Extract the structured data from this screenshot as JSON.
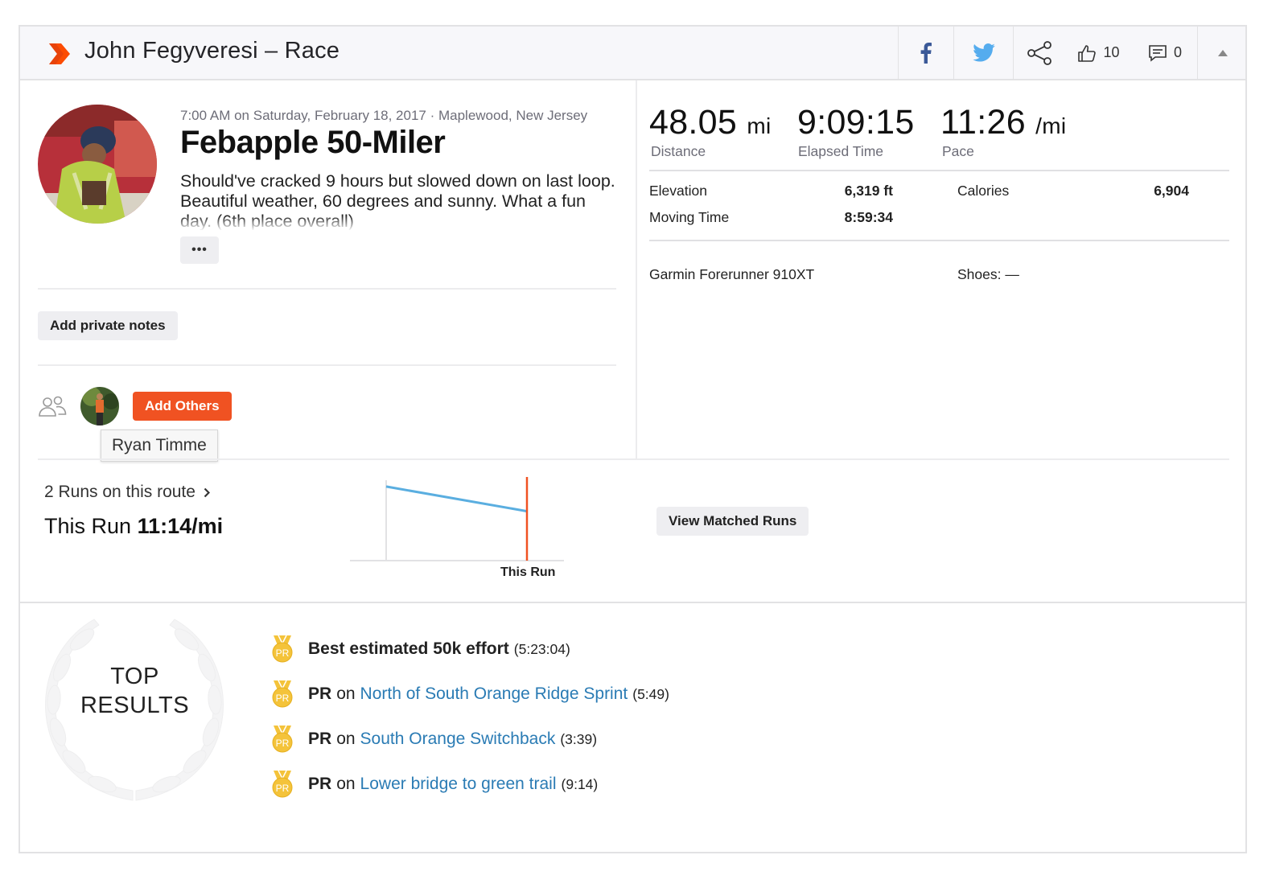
{
  "header": {
    "title": "John Fegyveresi – Race",
    "kudos_count": "10",
    "comment_count": "0"
  },
  "activity": {
    "meta": "7:00 AM on Saturday, February 18, 2017 · Maplewood, New Jersey",
    "name": "Febapple 50-Miler",
    "description": "Should've cracked 9 hours but slowed down on last loop. Beautiful weather, 60 degrees and sunny. What a fun day. (6th place overall)",
    "more_label": "•••",
    "notes_label": "Add private notes",
    "add_others_label": "Add Others",
    "tooltip": "Ryan Timme"
  },
  "stats": {
    "distance": {
      "value": "48.05",
      "unit": "mi",
      "label": "Distance"
    },
    "elapsed": {
      "value": "9:09:15",
      "label": "Elapsed Time"
    },
    "pace": {
      "value": "11:26",
      "unit": "/mi",
      "label": "Pace"
    },
    "elevation": {
      "label": "Elevation",
      "value": "6,319 ft"
    },
    "moving": {
      "label": "Moving Time",
      "value": "8:59:34"
    },
    "calories": {
      "label": "Calories",
      "value": "6,904"
    },
    "device": "Garmin Forerunner 910XT",
    "shoes": "Shoes: —"
  },
  "route": {
    "runs_link": "2 Runs on this route",
    "this_run_prefix": "This Run",
    "this_run_pace": "11:14/mi",
    "chart_label": "This Run",
    "matched_label": "View Matched Runs"
  },
  "chart_data": {
    "type": "line",
    "title": "",
    "xlabel": "This Run",
    "ylabel": "",
    "series": [
      {
        "name": "pace",
        "values": [
          1.0,
          0.6
        ]
      }
    ],
    "highlight": "This Run",
    "colors": {
      "line": "#5aaee0",
      "marker": "#f05222"
    }
  },
  "results": {
    "title_line1": "TOP",
    "title_line2": "RESULTS",
    "medal_label": "PR",
    "items": [
      {
        "bold": "Best estimated 50k effort",
        "on": "",
        "link": "",
        "time": "(5:23:04)"
      },
      {
        "bold": "PR",
        "on": "on",
        "link": "North of South Orange Ridge Sprint",
        "time": "(5:49)"
      },
      {
        "bold": "PR",
        "on": "on",
        "link": "South Orange Switchback",
        "time": "(3:39)"
      },
      {
        "bold": "PR",
        "on": "on",
        "link": "Lower bridge to green trail",
        "time": "(9:14)"
      }
    ]
  },
  "colors": {
    "brand": "#fc4c02",
    "accent": "#f05222",
    "link": "#2a7bb4",
    "medal": "#f4c33a"
  }
}
